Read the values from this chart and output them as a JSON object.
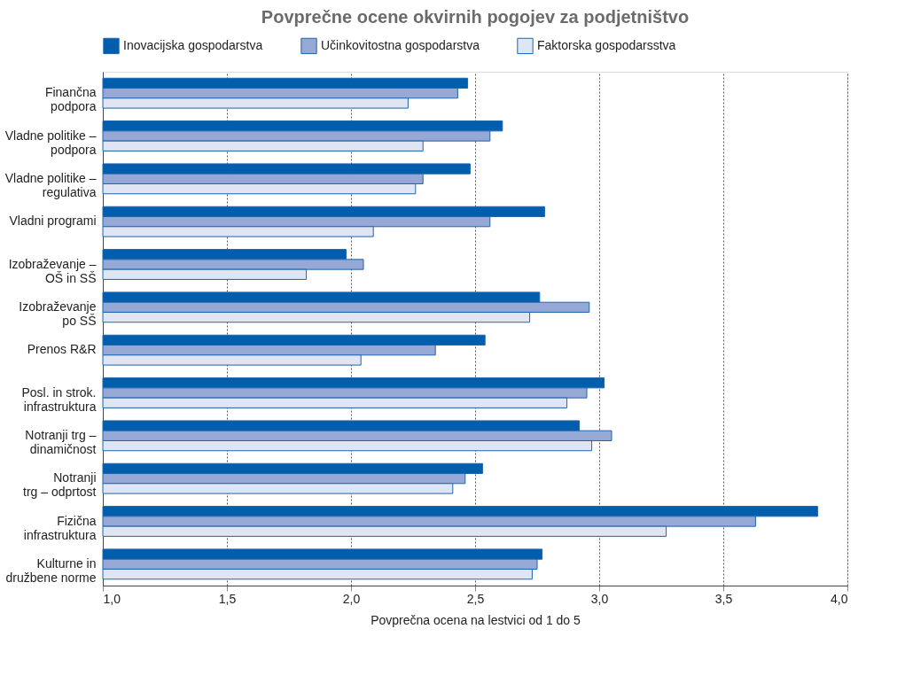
{
  "chart_data": {
    "type": "bar",
    "orientation": "horizontal",
    "title": "Povprečne ocene okvirnih pogojev za podjetništvo",
    "xlabel": "Povprečna ocena na lestvici od 1 do 5",
    "categories": [
      "Finančna\npodpora",
      "Vladne politike –\npodpora",
      "Vladne politike –\nregulativa",
      "Vladni programi",
      "Izobraževanje –\nOŠ in SŠ",
      "Izobraževanje\npo SŠ",
      "Prenos R&R",
      "Posl. in strok.\ninfrastruktura",
      "Notranji trg –\ndinamičnost",
      "Notranji\ntrg – odprtost",
      "Fizična\ninfrastruktura",
      "Kulturne in\ndružbene norme"
    ],
    "series": [
      {
        "name": "Inovacijska gospodarstva",
        "color": "#005eac",
        "values": [
          2.47,
          2.61,
          2.48,
          2.78,
          1.98,
          2.76,
          2.54,
          3.02,
          2.92,
          2.53,
          3.88,
          2.77
        ]
      },
      {
        "name": "Učinkovitostna gospodarstva",
        "color": "#96a9d6",
        "values": [
          2.43,
          2.56,
          2.29,
          2.56,
          2.05,
          2.96,
          2.34,
          2.95,
          3.05,
          2.46,
          3.63,
          2.75
        ]
      },
      {
        "name": "Faktorska gospodarsstva",
        "color": "#dfe5f3",
        "values": [
          2.23,
          2.29,
          2.26,
          2.09,
          1.82,
          2.72,
          2.04,
          2.87,
          2.97,
          2.41,
          3.27,
          2.73
        ]
      }
    ],
    "xlim": [
      1.0,
      4.0
    ],
    "xticks": [
      {
        "value": 1.0,
        "label": "1,0"
      },
      {
        "value": 1.5,
        "label": "1,5"
      },
      {
        "value": 2.0,
        "label": "2,0"
      },
      {
        "value": 2.5,
        "label": "2,5"
      },
      {
        "value": 3.0,
        "label": "3,0"
      },
      {
        "value": 3.5,
        "label": "3,5"
      },
      {
        "value": 4.0,
        "label": "4,0"
      }
    ],
    "grid": "x",
    "legend": "top"
  }
}
